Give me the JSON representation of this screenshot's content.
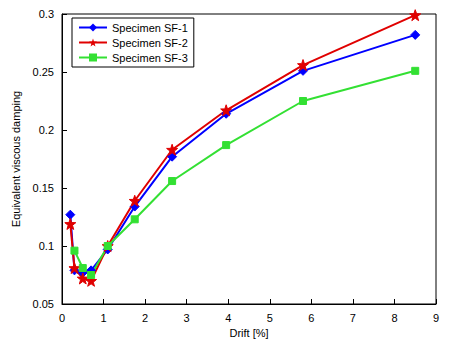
{
  "chart_data": {
    "type": "line",
    "x_label": "Drift [%]",
    "y_label": "Equivalent viscous damping",
    "x": [
      0.2,
      0.3,
      0.5,
      0.7,
      1.1,
      1.75,
      2.65,
      3.95,
      5.8,
      8.5
    ],
    "series": [
      {
        "name": "Specimen SF-1",
        "color": "#0000ff",
        "marker": "diamond",
        "values": [
          0.127,
          0.079,
          0.077,
          0.079,
          0.097,
          0.134,
          0.177,
          0.214,
          0.251,
          0.282
        ]
      },
      {
        "name": "Specimen SF-2",
        "color": "#e00000",
        "marker": "star",
        "values": [
          0.119,
          0.081,
          0.072,
          0.07,
          0.1,
          0.139,
          0.183,
          0.217,
          0.256,
          0.299
        ]
      },
      {
        "name": "Specimen SF-3",
        "color": "#33e033",
        "marker": "square",
        "values": [
          null,
          0.096,
          0.081,
          0.075,
          0.1,
          0.123,
          0.156,
          0.187,
          0.225,
          0.251
        ]
      }
    ],
    "xlim": [
      0,
      9
    ],
    "xticks": [
      0,
      1,
      2,
      3,
      4,
      5,
      6,
      7,
      8,
      9
    ],
    "ylim": [
      0.05,
      0.3
    ],
    "yticks": [
      0.05,
      0.1,
      0.15,
      0.2,
      0.25,
      0.3
    ],
    "grid": false,
    "legend": "upper left"
  }
}
